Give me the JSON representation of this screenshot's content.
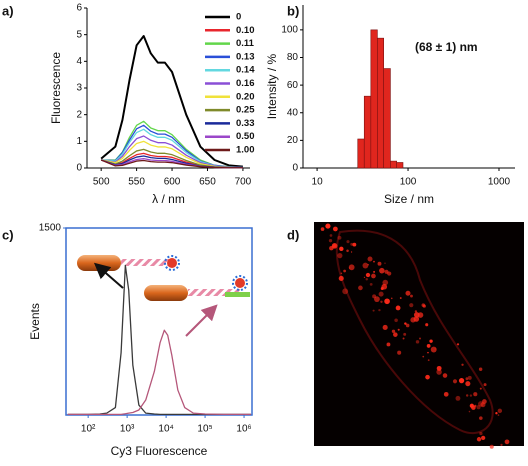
{
  "chart_data": [
    {
      "type": "line",
      "label": "a)",
      "xlabel": "λ / nm",
      "ylabel": "Fluorescence",
      "x": [
        500,
        520,
        530,
        540,
        550,
        560,
        570,
        580,
        590,
        600,
        620,
        640,
        660,
        680,
        700
      ],
      "xlim": [
        480,
        710
      ],
      "xticks": [
        500,
        550,
        600,
        650,
        700
      ],
      "ylim": [
        0,
        6
      ],
      "yticks": [
        0,
        1,
        2,
        3,
        4,
        5,
        6
      ],
      "legend": "upper right",
      "series": [
        {
          "name": "0",
          "color": "#000000",
          "values": [
            0.35,
            0.8,
            1.8,
            3.3,
            4.6,
            4.95,
            4.3,
            3.95,
            3.95,
            3.6,
            2.0,
            0.8,
            0.3,
            0.1,
            0.05
          ]
        },
        {
          "name": "0.10",
          "color": "#e8262d",
          "values": [
            0.3,
            0.13,
            0.2,
            0.36,
            0.5,
            0.55,
            0.47,
            0.43,
            0.43,
            0.4,
            0.22,
            0.09,
            0.03,
            0.01,
            0.01
          ]
        },
        {
          "name": "0.11",
          "color": "#62d64a",
          "values": [
            0.3,
            0.3,
            0.6,
            1.15,
            1.6,
            1.75,
            1.5,
            1.4,
            1.4,
            1.25,
            0.7,
            0.3,
            0.1,
            0.05,
            0.02
          ]
        },
        {
          "name": "0.13",
          "color": "#2a4fd8",
          "values": [
            0.3,
            0.28,
            0.58,
            1.05,
            1.47,
            1.6,
            1.38,
            1.27,
            1.27,
            1.15,
            0.65,
            0.26,
            0.1,
            0.04,
            0.02
          ]
        },
        {
          "name": "0.14",
          "color": "#63d8e0",
          "values": [
            0.3,
            0.26,
            0.52,
            0.96,
            1.33,
            1.45,
            1.25,
            1.15,
            1.15,
            1.04,
            0.58,
            0.24,
            0.09,
            0.03,
            0.02
          ]
        },
        {
          "name": "0.16",
          "color": "#8a4fd6",
          "values": [
            0.3,
            0.22,
            0.44,
            0.8,
            1.1,
            1.2,
            1.04,
            0.95,
            0.95,
            0.86,
            0.48,
            0.2,
            0.08,
            0.03,
            0.02
          ]
        },
        {
          "name": "0.20",
          "color": "#f0e23a",
          "values": [
            0.3,
            0.2,
            0.36,
            0.66,
            0.92,
            1.0,
            0.86,
            0.79,
            0.79,
            0.72,
            0.4,
            0.16,
            0.06,
            0.02,
            0.01
          ]
        },
        {
          "name": "0.25",
          "color": "#7f8a2a",
          "values": [
            0.3,
            0.15,
            0.26,
            0.46,
            0.64,
            0.7,
            0.6,
            0.55,
            0.55,
            0.5,
            0.28,
            0.11,
            0.04,
            0.02,
            0.01
          ]
        },
        {
          "name": "0.33",
          "color": "#1a2a9a",
          "values": [
            0.3,
            0.12,
            0.17,
            0.3,
            0.41,
            0.45,
            0.39,
            0.36,
            0.36,
            0.32,
            0.18,
            0.07,
            0.03,
            0.01,
            0.01
          ]
        },
        {
          "name": "0.50",
          "color": "#9b47c9",
          "values": [
            0.3,
            0.1,
            0.13,
            0.23,
            0.32,
            0.35,
            0.3,
            0.28,
            0.28,
            0.25,
            0.14,
            0.06,
            0.02,
            0.01,
            0.01
          ]
        },
        {
          "name": "1.00",
          "color": "#6e1a1a",
          "values": [
            0.3,
            0.08,
            0.1,
            0.18,
            0.26,
            0.28,
            0.24,
            0.22,
            0.22,
            0.2,
            0.11,
            0.05,
            0.02,
            0.01,
            0.01
          ]
        }
      ]
    },
    {
      "type": "histogram",
      "label": "b)",
      "xlabel": "Size / nm",
      "ylabel": "Intensity / %",
      "annotation": "(68 ± 1) nm",
      "color": "#e0261e",
      "xscale": "log",
      "bins": [
        28,
        33,
        39,
        46,
        54,
        64,
        75,
        88
      ],
      "values": [
        21,
        52,
        100,
        94,
        72,
        5,
        4
      ],
      "xlim": [
        7,
        1500
      ],
      "xticks": [
        10,
        100,
        1000
      ],
      "ylim": [
        0,
        118
      ],
      "yticks": [
        0,
        20,
        40,
        60,
        80,
        100
      ]
    },
    {
      "type": "line",
      "label": "c)",
      "xlabel": "Cy3 Fluorescence",
      "ylabel": "Events",
      "xscale": "log",
      "x": [
        30,
        60,
        100,
        200,
        300,
        500,
        700,
        900,
        1100,
        1400,
        2000,
        3000,
        5000,
        7000,
        9000,
        11000,
        14000,
        20000,
        30000,
        50000,
        100000,
        300000,
        1000000,
        1500000
      ],
      "xlim": [
        27,
        1600000
      ],
      "xticks": [
        {
          "value": 100,
          "label": "10²"
        },
        {
          "value": 1000,
          "label": "10³"
        },
        {
          "value": 10000,
          "label": "10⁴"
        },
        {
          "value": 100000,
          "label": "10⁵"
        },
        {
          "value": 1000000,
          "label": "10⁶"
        }
      ],
      "ylim": [
        0,
        1500
      ],
      "yticks": [
        1500
      ],
      "series": [
        {
          "color": "#3a3a3a",
          "values": [
            5,
            5,
            5,
            8,
            15,
            60,
            500,
            1200,
            1000,
            400,
            80,
            15,
            8,
            5,
            5,
            5,
            5,
            5,
            5,
            5,
            5,
            5,
            5,
            5
          ]
        },
        {
          "color": "#b5577a",
          "values": [
            5,
            5,
            5,
            5,
            5,
            5,
            5,
            10,
            15,
            20,
            40,
            120,
            350,
            580,
            680,
            640,
            480,
            200,
            60,
            15,
            8,
            5,
            5,
            5
          ]
        }
      ]
    }
  ],
  "image": {
    "label": "d)"
  }
}
